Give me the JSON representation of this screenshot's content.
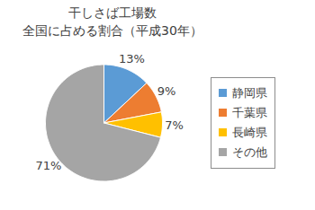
{
  "chart_data": {
    "type": "pie",
    "title": "干しさば工場数",
    "subtitle": "全国に占める割合（平成30年）",
    "categories": [
      "静岡県",
      "千葉県",
      "長崎県",
      "その他"
    ],
    "values": [
      13,
      9,
      7,
      71
    ],
    "value_labels": [
      "13%",
      "9%",
      "7%",
      "71%"
    ],
    "colors": [
      "#5b9bd5",
      "#ed7d31",
      "#ffc000",
      "#a5a5a5"
    ],
    "data_labels": true,
    "legend": "right"
  }
}
